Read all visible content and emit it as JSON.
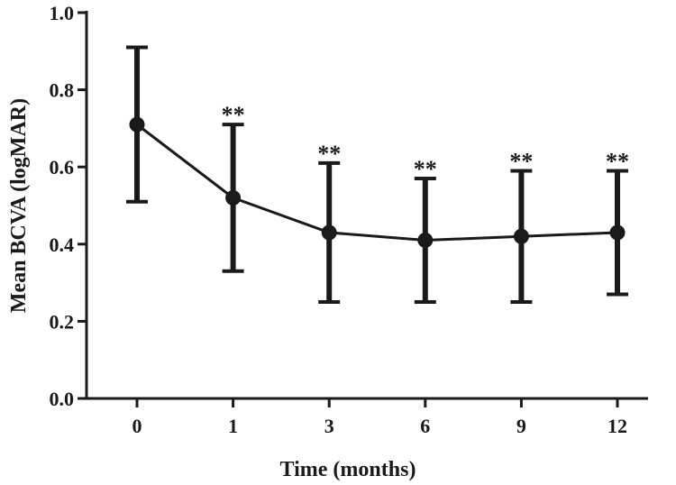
{
  "colors": {
    "ink": "#1a1a1a",
    "background": "#ffffff"
  },
  "chart_data": {
    "type": "line",
    "title": "",
    "xlabel": "Time (months)",
    "ylabel": "Mean BCVA (logMAR)",
    "categories": [
      "0",
      "1",
      "3",
      "6",
      "9",
      "12"
    ],
    "ylim": [
      0.0,
      1.0
    ],
    "yticks": [
      "0.0",
      "0.2",
      "0.4",
      "0.6",
      "0.8",
      "1.0"
    ],
    "grid": false,
    "legend": "none",
    "series": [
      {
        "values": [
          0.71,
          0.52,
          0.43,
          0.41,
          0.42,
          0.43
        ],
        "error_low": [
          0.51,
          0.33,
          0.25,
          0.25,
          0.25,
          0.27
        ],
        "error_high": [
          0.91,
          0.71,
          0.61,
          0.57,
          0.59,
          0.59
        ],
        "marker": "circle"
      }
    ],
    "annotations": [
      "",
      "**",
      "**",
      "**",
      "**",
      "**"
    ]
  }
}
